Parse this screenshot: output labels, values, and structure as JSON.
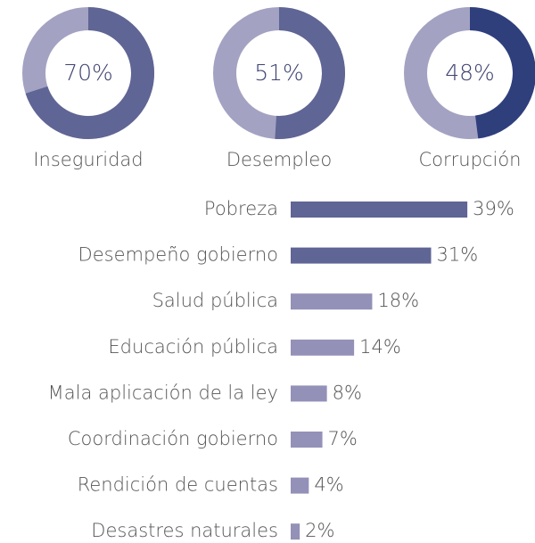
{
  "chart_data": [
    {
      "type": "donut",
      "title": "Inseguridad",
      "values": [
        70
      ],
      "value_labels": [
        "70%"
      ],
      "color": "#5f6594",
      "track_color": "#a3a2c2"
    },
    {
      "type": "donut",
      "title": "Desempleo",
      "values": [
        51
      ],
      "value_labels": [
        "51%"
      ],
      "color": "#5f6594",
      "track_color": "#a3a2c2"
    },
    {
      "type": "donut",
      "title": "Corrupción",
      "values": [
        48
      ],
      "value_labels": [
        "48%"
      ],
      "color": "#2e3f7c",
      "track_color": "#a3a2c2"
    },
    {
      "type": "bar",
      "orientation": "horizontal",
      "categories": [
        "Pobreza",
        "Desempeño gobierno",
        "Salud pública",
        "Educación pública",
        "Mala aplicación de la ley",
        "Coordinación gobierno",
        "Rendición de cuentas",
        "Desastres naturales"
      ],
      "values": [
        39,
        31,
        18,
        14,
        8,
        7,
        4,
        2
      ],
      "value_labels": [
        "39%",
        "31%",
        "18%",
        "14%",
        "8%",
        "7%",
        "4%",
        "2%"
      ],
      "colors": [
        "#5f6594",
        "#5f6594",
        "#9391b8",
        "#9391b8",
        "#9391b8",
        "#9391b8",
        "#9391b8",
        "#9391b8"
      ]
    }
  ]
}
